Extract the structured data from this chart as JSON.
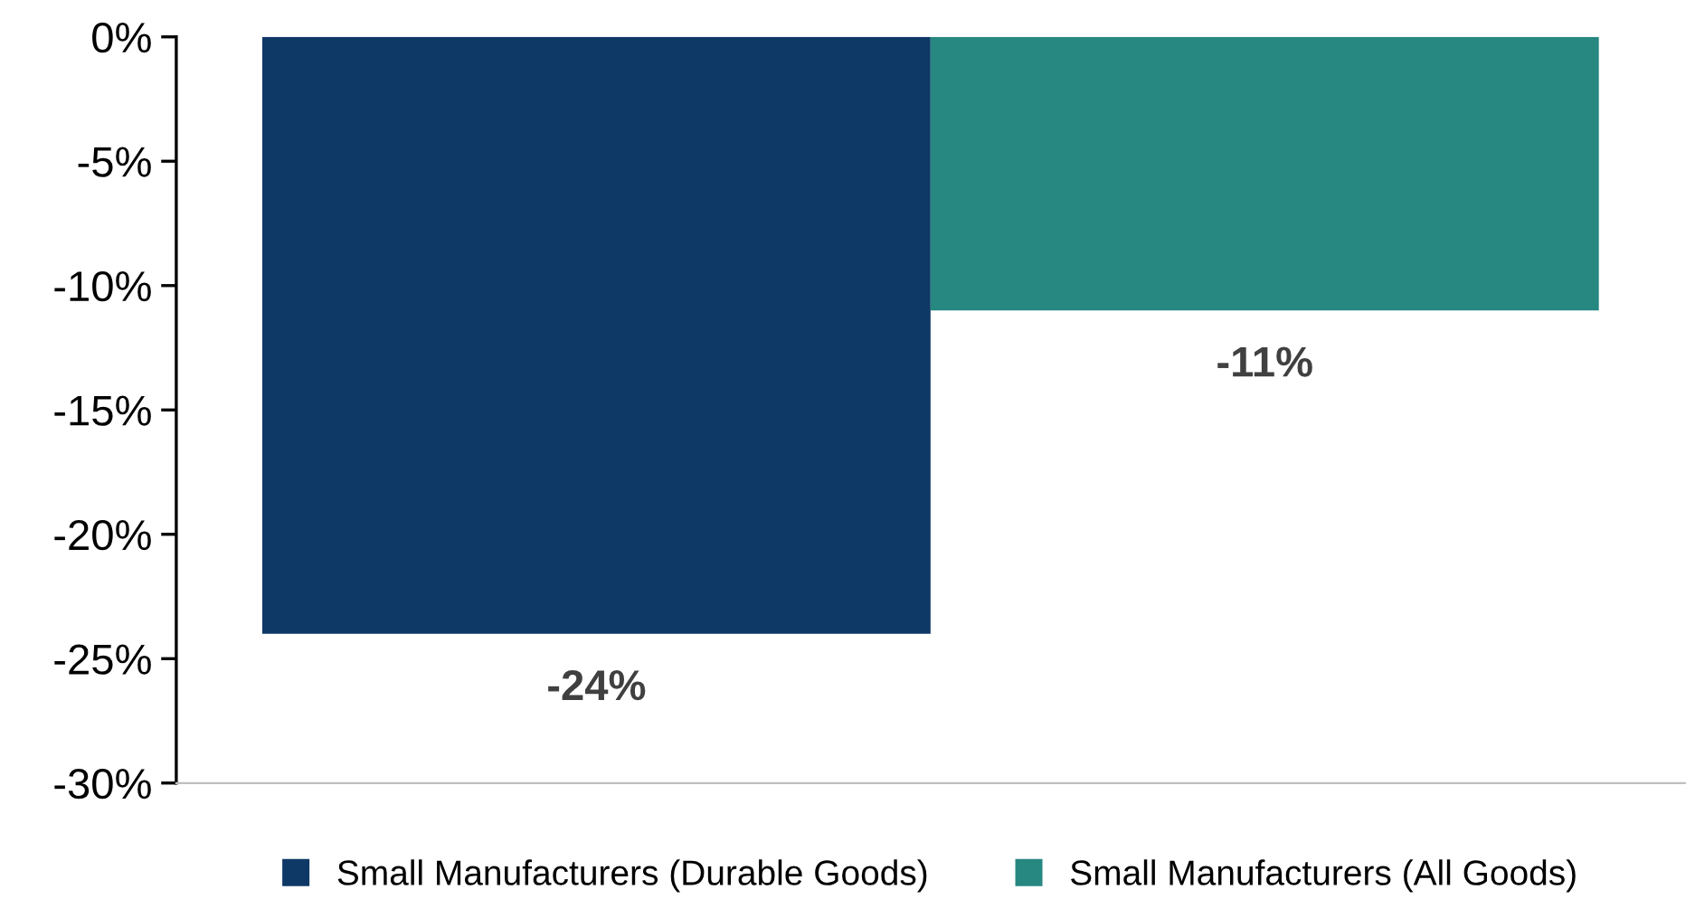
{
  "chart_data": {
    "type": "bar",
    "categories": [
      null
    ],
    "series": [
      {
        "name": "Small Manufacturers (Durable Goods)",
        "color": "#0e3866",
        "values": [
          -24
        ],
        "value_labels": [
          "-24%"
        ]
      },
      {
        "name": "Small Manufacturers (All Goods)",
        "color": "#278781",
        "values": [
          -11
        ],
        "value_labels": [
          "-11%"
        ]
      }
    ],
    "ylim": [
      -30,
      0
    ],
    "yticks": [
      {
        "value": 0,
        "label": "0%"
      },
      {
        "value": -5,
        "label": "-5%"
      },
      {
        "value": -10,
        "label": "-10%"
      },
      {
        "value": -15,
        "label": "-15%"
      },
      {
        "value": -20,
        "label": "-20%"
      },
      {
        "value": -25,
        "label": "-25%"
      },
      {
        "value": -30,
        "label": "-30%"
      }
    ],
    "grid": false,
    "legend": "bottom"
  }
}
